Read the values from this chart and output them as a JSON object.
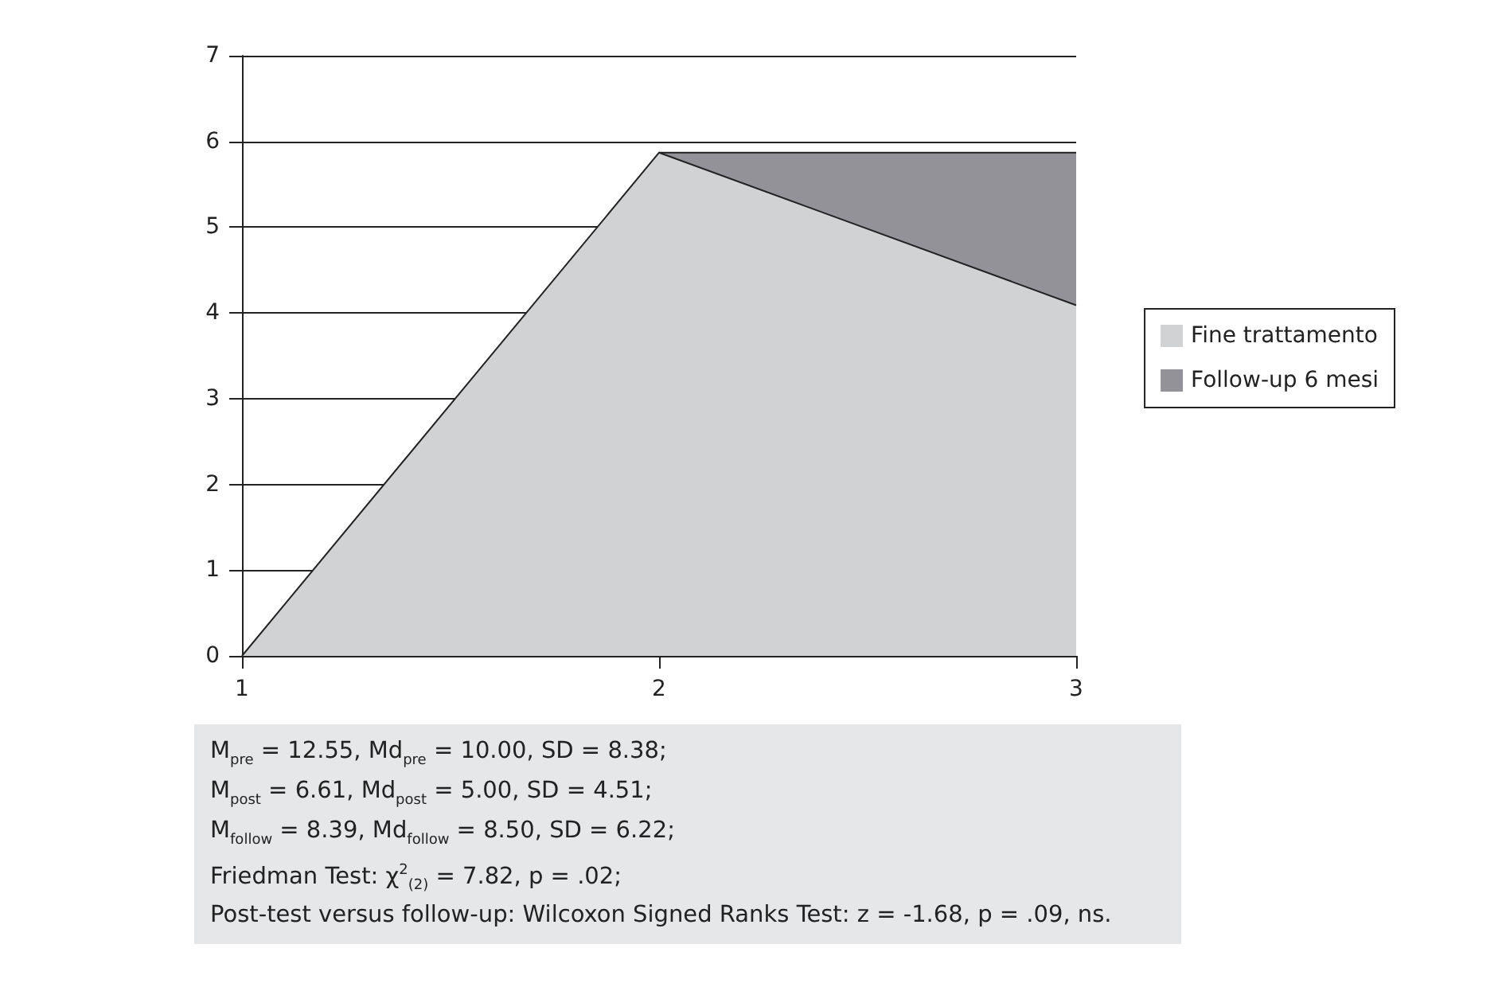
{
  "chart_data": {
    "type": "area",
    "x": [
      1,
      2,
      3
    ],
    "xlim": [
      1,
      3
    ],
    "xticks": [
      1,
      2,
      3
    ],
    "ylim": [
      0,
      7
    ],
    "yticks": [
      0,
      1,
      2,
      3,
      4,
      5,
      6,
      7
    ],
    "grid": "y",
    "legend": "right",
    "marker": "none",
    "series": [
      {
        "name": "Fine trattamento",
        "color": "#d1d2d4",
        "values": [
          0,
          5.87,
          4.09
        ]
      },
      {
        "name": "Follow-up 6 mesi",
        "color": "#939298",
        "values": [
          null,
          5.87,
          5.87
        ]
      }
    ],
    "annotations": [
      "M$_{pre}$ = 12.55, Md$_{pre}$ = 10.00, SD = 8.38;",
      "M$_{post}$ = 6.61, Md$_{post}$ = 5.00, SD = 4.51;",
      "M$_{follow}$ = 8.39, Md$_{follow}$ = 8.50, SD = 6.22;",
      "Friedman Test: χ$^{2}$$_{(2)}$ = 7.82, p = .02;",
      "Post-test versus follow-up: Wilcoxon Signed Ranks Test: z = -1.68, p = .09, ns."
    ]
  }
}
